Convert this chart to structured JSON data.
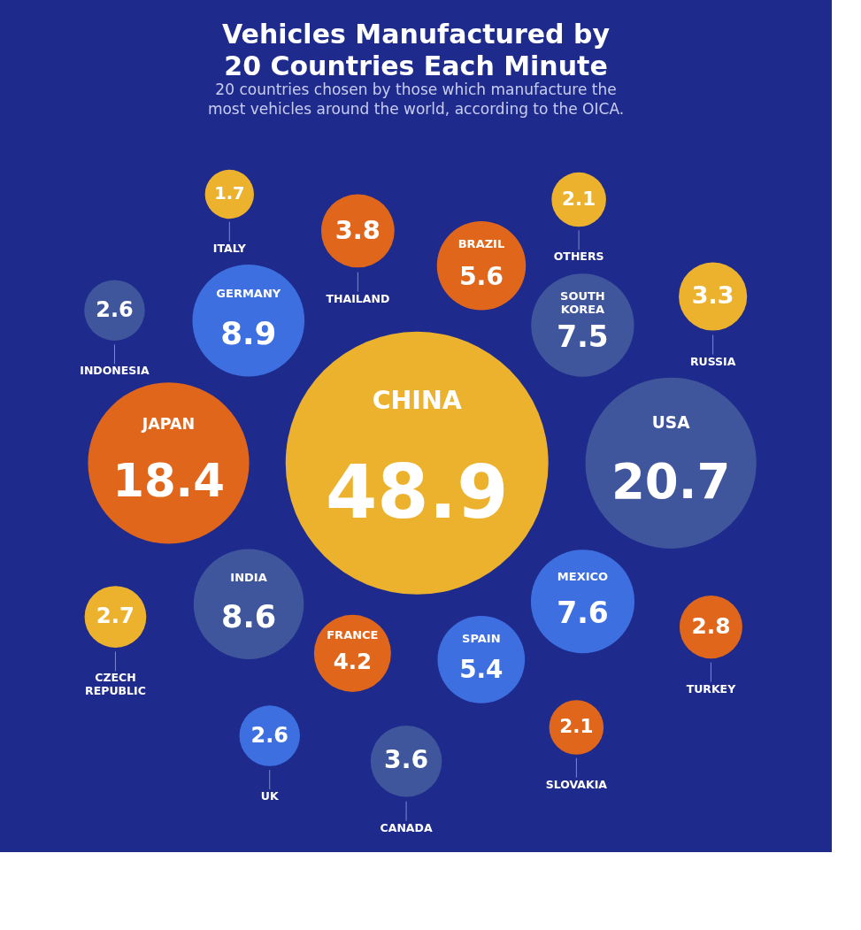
{
  "chart_data": {
    "type": "other",
    "title": "Vehicles Manufactured by\n20 Countries Each Minute",
    "subtitle": "20 countries chosen by those which manufacture the\nmost vehicles around the world, according to the OICA.",
    "categories": [
      "CHINA",
      "USA",
      "JAPAN",
      "GERMANY",
      "INDIA",
      "MEXICO",
      "SOUTH KOREA",
      "BRAZIL",
      "SPAIN",
      "FRANCE",
      "THAILAND",
      "CANADA",
      "RUSSIA",
      "TURKEY",
      "CZECH REPUBLIC",
      "INDONESIA",
      "UK",
      "SLOVAKIA",
      "OTHERS",
      "ITALY"
    ],
    "values": [
      48.9,
      20.7,
      18.4,
      8.9,
      8.6,
      7.6,
      7.5,
      5.6,
      5.4,
      4.2,
      3.8,
      3.6,
      3.3,
      2.8,
      2.7,
      2.6,
      2.6,
      2.1,
      2.1,
      1.7
    ],
    "colors": [
      "#ecb22e",
      "#3f569c",
      "#e0661c",
      "#3d6fe0",
      "#3f569c",
      "#3d6fe0",
      "#3f569c",
      "#e0661c",
      "#3d6fe0",
      "#e0661c",
      "#e0661c",
      "#3f569c",
      "#ecb22e",
      "#e0661c",
      "#ecb22e",
      "#3f569c",
      "#3d6fe0",
      "#e0661c",
      "#ecb22e",
      "#ecb22e"
    ],
    "data_labels": true
  }
}
